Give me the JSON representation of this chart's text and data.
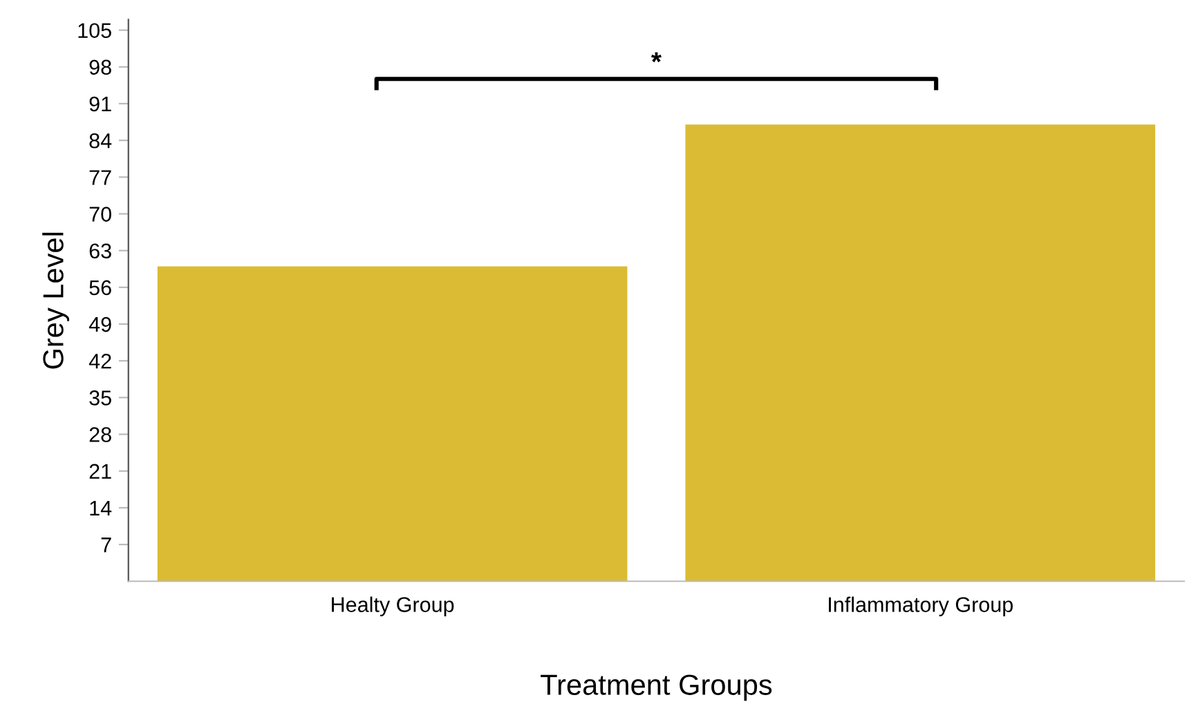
{
  "chart_data": {
    "type": "bar",
    "xlabel": "Treatment Groups",
    "ylabel": "Grey Level",
    "categories": [
      "Healty Group",
      "Inflammatory Group"
    ],
    "values": [
      60,
      87
    ],
    "color": "#dbbb33",
    "ylim": [
      0,
      107
    ],
    "yticks": [
      7,
      14,
      21,
      28,
      35,
      42,
      49,
      56,
      63,
      70,
      77,
      84,
      91,
      98,
      105
    ],
    "grid": false,
    "legend": false,
    "annotations": [
      "*"
    ]
  }
}
